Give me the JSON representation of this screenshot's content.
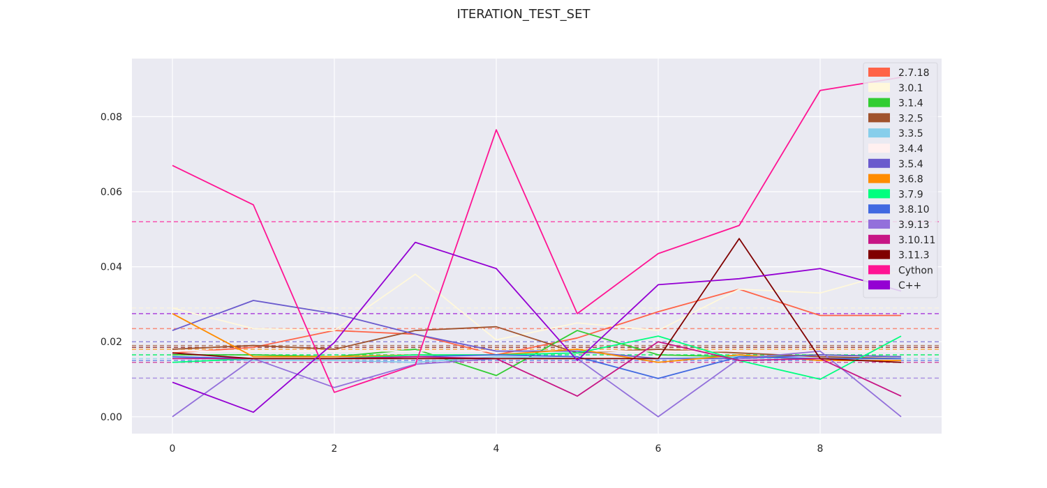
{
  "chart_data": {
    "type": "line",
    "title": "ITERATION_TEST_SET",
    "xlabel": "",
    "ylabel": "",
    "xlim": [
      -0.5,
      9.5
    ],
    "ylim": [
      -0.0045,
      0.0955
    ],
    "xticks": [
      0,
      2,
      4,
      6,
      8
    ],
    "xtick_labels": [
      "0",
      "2",
      "4",
      "6",
      "8"
    ],
    "yticks": [
      0.0,
      0.02,
      0.04,
      0.06,
      0.08
    ],
    "ytick_labels": [
      "0.00",
      "0.02",
      "0.04",
      "0.06",
      "0.08"
    ],
    "grid": true,
    "legend_position": "top-right",
    "x": [
      0,
      1,
      2,
      3,
      4,
      5,
      6,
      7,
      8,
      9
    ],
    "series": [
      {
        "name": "2.7.18",
        "color": "#ff6347",
        "mean": 0.0235,
        "values": [
          0.017,
          0.0185,
          0.023,
          0.022,
          0.0165,
          0.021,
          0.028,
          0.034,
          0.027,
          0.027
        ]
      },
      {
        "name": "3.0.1",
        "color": "#fff8dc",
        "mean": 0.029,
        "values": [
          0.029,
          0.0235,
          0.023,
          0.038,
          0.0205,
          0.025,
          0.023,
          0.034,
          0.033,
          0.039
        ]
      },
      {
        "name": "3.1.4",
        "color": "#32cd32",
        "mean": 0.0165,
        "values": [
          0.0165,
          0.0165,
          0.016,
          0.018,
          0.011,
          0.023,
          0.0165,
          0.016,
          0.0165,
          0.016
        ]
      },
      {
        "name": "3.2.5",
        "color": "#a0522d",
        "mean": 0.019,
        "values": [
          0.018,
          0.019,
          0.018,
          0.023,
          0.024,
          0.017,
          0.018,
          0.017,
          0.016,
          0.0155
        ]
      },
      {
        "name": "3.3.5",
        "color": "#87ceeb",
        "mean": 0.0155,
        "values": [
          0.016,
          0.015,
          0.015,
          0.0145,
          0.016,
          0.0155,
          0.0155,
          0.016,
          0.0155,
          0.0155
        ]
      },
      {
        "name": "3.4.4",
        "color": "#fff0f0",
        "mean": 0.0175,
        "values": [
          0.0175,
          0.0175,
          0.0175,
          0.0175,
          0.0175,
          0.0175,
          0.0175,
          0.0175,
          0.0175,
          0.0175
        ]
      },
      {
        "name": "3.5.4",
        "color": "#6a5acd",
        "mean": 0.02,
        "values": [
          0.023,
          0.031,
          0.0275,
          0.022,
          0.0175,
          0.0175,
          0.0155,
          0.0155,
          0.0165,
          0.016
        ]
      },
      {
        "name": "3.6.8",
        "color": "#ff8c00",
        "mean": 0.018,
        "values": [
          0.0275,
          0.016,
          0.016,
          0.0165,
          0.0165,
          0.018,
          0.0145,
          0.0165,
          0.015,
          0.015
        ]
      },
      {
        "name": "3.7.9",
        "color": "#00ff7f",
        "mean": 0.0165,
        "values": [
          0.0145,
          0.0155,
          0.0155,
          0.0165,
          0.0165,
          0.017,
          0.0215,
          0.015,
          0.01,
          0.0215
        ]
      },
      {
        "name": "3.8.10",
        "color": "#4169e1",
        "mean": 0.015,
        "values": [
          0.016,
          0.0155,
          0.0155,
          0.016,
          0.0165,
          0.016,
          0.0102,
          0.016,
          0.0155,
          0.0155
        ]
      },
      {
        "name": "3.9.13",
        "color": "#9370db",
        "mean": 0.0103,
        "values": [
          0.0,
          0.0155,
          0.0078,
          0.014,
          0.0155,
          0.0155,
          0.0,
          0.0155,
          0.0175,
          0.0
        ]
      },
      {
        "name": "3.10.11",
        "color": "#c71585",
        "mean": 0.0145,
        "values": [
          0.0155,
          0.0155,
          0.0155,
          0.016,
          0.0155,
          0.0055,
          0.02,
          0.015,
          0.0155,
          0.0055
        ]
      },
      {
        "name": "3.11.3",
        "color": "#800000",
        "mean": 0.0185,
        "values": [
          0.017,
          0.0155,
          0.0155,
          0.0155,
          0.0155,
          0.0155,
          0.0155,
          0.0475,
          0.0155,
          0.0145
        ]
      },
      {
        "name": "Cython",
        "color": "#ff1493",
        "mean": 0.052,
        "values": [
          0.067,
          0.0565,
          0.0065,
          0.0138,
          0.0765,
          0.0275,
          0.0435,
          0.051,
          0.087,
          0.0905
        ]
      },
      {
        "name": "C++",
        "color": "#9400d3",
        "mean": 0.0275,
        "values": [
          0.0092,
          0.0012,
          0.0198,
          0.0465,
          0.0395,
          0.015,
          0.0352,
          0.0368,
          0.0395,
          0.0335
        ]
      }
    ]
  }
}
